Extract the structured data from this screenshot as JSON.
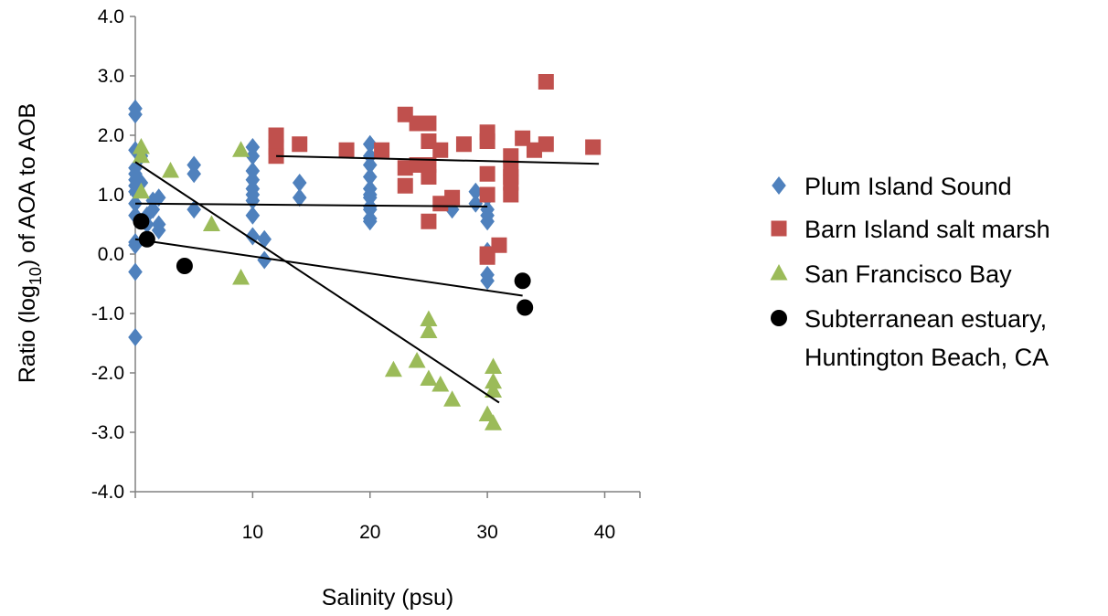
{
  "chart_data": {
    "type": "scatter",
    "title": "",
    "xlabel": "Salinity (psu)",
    "ylabel": {
      "pre": "Ratio (log",
      "sub": "10",
      "post": ") of AOA to AOB"
    },
    "xlim": [
      0,
      43
    ],
    "ylim": [
      -4,
      4
    ],
    "x_ticks": [
      10,
      20,
      30,
      40
    ],
    "y_ticks": [
      4.0,
      3.0,
      2.0,
      1.0,
      0.0,
      -1.0,
      -2.0,
      -3.0,
      -4.0
    ],
    "x_tick_labels": [
      "10",
      "20",
      "30",
      "40"
    ],
    "y_tick_labels": [
      "4.0",
      "3.0",
      "2.0",
      "1.0",
      "0.0",
      "-1.0",
      "-2.0",
      "-3.0",
      "-4.0"
    ],
    "grid": false,
    "legend_position": "right",
    "series": [
      {
        "name": "Plum Island Sound",
        "marker": "diamond",
        "color": "#4f81bd",
        "points": [
          [
            0,
            2.45
          ],
          [
            0,
            2.35
          ],
          [
            0,
            1.75
          ],
          [
            0,
            1.45
          ],
          [
            0,
            1.35
          ],
          [
            0,
            1.25
          ],
          [
            0,
            1.15
          ],
          [
            0,
            1.05
          ],
          [
            0,
            0.85
          ],
          [
            0,
            0.65
          ],
          [
            0,
            0.2
          ],
          [
            0,
            0.15
          ],
          [
            0,
            -0.3
          ],
          [
            0,
            -1.4
          ],
          [
            0.5,
            1.65
          ],
          [
            0.5,
            1.2
          ],
          [
            1,
            0.65
          ],
          [
            1,
            0.5
          ],
          [
            1.5,
            0.9
          ],
          [
            1.5,
            0.75
          ],
          [
            2,
            0.95
          ],
          [
            2,
            0.5
          ],
          [
            2,
            0.4
          ],
          [
            5,
            1.5
          ],
          [
            5,
            1.35
          ],
          [
            5,
            0.75
          ],
          [
            10,
            1.8
          ],
          [
            10,
            1.65
          ],
          [
            10,
            1.4
          ],
          [
            10,
            1.25
          ],
          [
            10,
            1.1
          ],
          [
            10,
            1.0
          ],
          [
            10,
            0.9
          ],
          [
            10,
            0.65
          ],
          [
            10,
            0.3
          ],
          [
            11,
            0.25
          ],
          [
            11,
            -0.1
          ],
          [
            14,
            1.2
          ],
          [
            14,
            0.95
          ],
          [
            20,
            1.85
          ],
          [
            20,
            1.65
          ],
          [
            20,
            1.5
          ],
          [
            20,
            1.3
          ],
          [
            20,
            1.1
          ],
          [
            20,
            1.0
          ],
          [
            20,
            0.95
          ],
          [
            20,
            0.8
          ],
          [
            20,
            0.75
          ],
          [
            20,
            0.55
          ],
          [
            20,
            0.6
          ],
          [
            27,
            0.75
          ],
          [
            29,
            1.05
          ],
          [
            29,
            0.85
          ],
          [
            30,
            0.95
          ],
          [
            30,
            0.75
          ],
          [
            30,
            0.65
          ],
          [
            30,
            0.55
          ],
          [
            30,
            0.05
          ],
          [
            30,
            -0.35
          ],
          [
            30,
            -0.45
          ]
        ]
      },
      {
        "name": "Barn Island salt marsh",
        "marker": "square",
        "color": "#c0504d",
        "points": [
          [
            12,
            2.0
          ],
          [
            12,
            1.8
          ],
          [
            12,
            1.65
          ],
          [
            14,
            1.85
          ],
          [
            18,
            1.75
          ],
          [
            21,
            1.75
          ],
          [
            23,
            2.35
          ],
          [
            23,
            1.45
          ],
          [
            23,
            1.15
          ],
          [
            24,
            2.2
          ],
          [
            24,
            1.5
          ],
          [
            25,
            2.2
          ],
          [
            25,
            1.9
          ],
          [
            25,
            1.5
          ],
          [
            25,
            1.3
          ],
          [
            25,
            0.55
          ],
          [
            26,
            1.75
          ],
          [
            26,
            0.85
          ],
          [
            27,
            0.95
          ],
          [
            28,
            1.85
          ],
          [
            30,
            2.05
          ],
          [
            30,
            1.9
          ],
          [
            30,
            1.35
          ],
          [
            30,
            1.0
          ],
          [
            30,
            0.0
          ],
          [
            30,
            -0.05
          ],
          [
            31,
            0.15
          ],
          [
            32,
            1.65
          ],
          [
            32,
            1.45
          ],
          [
            32,
            1.3
          ],
          [
            32,
            1.2
          ],
          [
            32,
            1.0
          ],
          [
            33,
            1.95
          ],
          [
            34,
            1.75
          ],
          [
            35,
            2.9
          ],
          [
            35,
            1.85
          ],
          [
            39,
            1.8
          ]
        ]
      },
      {
        "name": "San Francisco Bay",
        "marker": "triangle",
        "color": "#9bbb59",
        "points": [
          [
            0.5,
            1.8
          ],
          [
            0.5,
            1.65
          ],
          [
            0.5,
            1.05
          ],
          [
            3,
            1.4
          ],
          [
            6.5,
            0.5
          ],
          [
            9,
            1.75
          ],
          [
            9,
            -0.4
          ],
          [
            22,
            -1.95
          ],
          [
            24,
            -1.8
          ],
          [
            25,
            -1.1
          ],
          [
            25,
            -1.3
          ],
          [
            25,
            -2.1
          ],
          [
            26,
            -2.2
          ],
          [
            27,
            -2.45
          ],
          [
            30,
            -2.7
          ],
          [
            30.5,
            -1.9
          ],
          [
            30.5,
            -2.15
          ],
          [
            30.5,
            -2.3
          ],
          [
            30.5,
            -2.85
          ]
        ]
      },
      {
        "name": "Subterranean estuary, Huntington  Beach, CA",
        "legend_lines": [
          "Subterranean estuary,",
          "Huntington  Beach, CA"
        ],
        "marker": "circle",
        "color": "#000000",
        "points": [
          [
            0.5,
            0.55
          ],
          [
            1,
            0.25
          ],
          [
            4.2,
            -0.2
          ],
          [
            33,
            -0.45
          ],
          [
            33.2,
            -0.9
          ]
        ]
      }
    ],
    "trendlines": [
      {
        "series": "Plum Island Sound",
        "x": [
          0,
          30
        ],
        "y": [
          0.85,
          0.8
        ]
      },
      {
        "series": "Barn Island salt marsh",
        "x": [
          12,
          39.5
        ],
        "y": [
          1.65,
          1.52
        ]
      },
      {
        "series": "San Francisco Bay",
        "x": [
          0,
          31
        ],
        "y": [
          1.55,
          -2.5
        ]
      },
      {
        "series": "Subterranean estuary, Huntington  Beach, CA",
        "x": [
          0,
          33
        ],
        "y": [
          0.25,
          -0.7
        ]
      }
    ]
  }
}
